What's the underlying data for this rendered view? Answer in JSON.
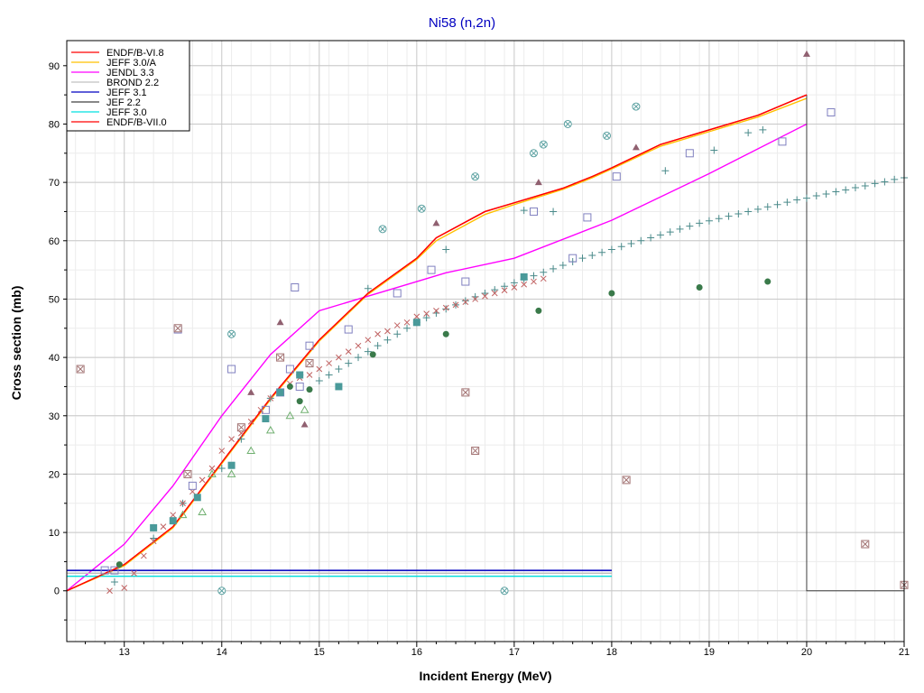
{
  "chart_data": {
    "type": "line",
    "title": "Ni58 (n,2n)",
    "xlabel": "Incident Energy (MeV)",
    "ylabel": "Cross section (mb)",
    "xlim": [
      12.41,
      21
    ],
    "ylim": [
      -8.7,
      94.3
    ],
    "xticks": [
      13,
      14,
      15,
      16,
      17,
      18,
      19,
      20,
      21
    ],
    "yticks": [
      0,
      10,
      20,
      30,
      40,
      50,
      60,
      70,
      80,
      90
    ],
    "grid": true,
    "legend_position": "top-left",
    "series": [
      {
        "name": "ENDF/B-VI.8",
        "color": "#ff0000",
        "x": [
          12.41,
          13,
          13.5,
          14,
          14.5,
          15,
          15.5,
          16,
          16.2,
          16.7,
          17,
          17.5,
          17.8,
          18,
          18.5,
          19,
          19.5,
          20
        ],
        "y": [
          0,
          4.5,
          11,
          22,
          33,
          43,
          51,
          57,
          60.5,
          65,
          66.5,
          69,
          71,
          72.5,
          76.5,
          79,
          81.5,
          85
        ]
      },
      {
        "name": "JEFF 3.0/A",
        "color": "#ffc000",
        "x": [
          12.41,
          13,
          13.5,
          14,
          14.5,
          15,
          15.5,
          16,
          16.2,
          16.7,
          17,
          17.5,
          17.8,
          18,
          18.5,
          19,
          19.5,
          20
        ],
        "y": [
          0,
          4.3,
          10.8,
          21.8,
          32.8,
          42.8,
          50.8,
          56.8,
          60,
          64.5,
          66.2,
          68.8,
          70.8,
          72.3,
          76.2,
          78.7,
          81.2,
          84.4
        ]
      },
      {
        "name": "JENDL 3.3",
        "color": "#ff00ff",
        "x": [
          12.41,
          13,
          13.5,
          14,
          14.5,
          15,
          16,
          16.3,
          17,
          18,
          19,
          20
        ],
        "y": [
          0,
          8,
          18,
          30,
          40.5,
          48,
          53,
          54.5,
          57,
          63.5,
          71.5,
          80
        ]
      },
      {
        "name": "BROND 2.2",
        "color": "#c0c0c0",
        "x": [
          12.41,
          18
        ],
        "y": [
          3,
          3
        ]
      },
      {
        "name": "JEFF 3.1",
        "color": "#0000c0",
        "x": [
          12.41,
          18
        ],
        "y": [
          3.5,
          3.5
        ]
      },
      {
        "name": "JEF 2.2",
        "color": "#404040",
        "x": [
          20,
          20,
          21
        ],
        "y": [
          85,
          0,
          0
        ]
      },
      {
        "name": "JEFF 3.0",
        "color": "#00e0e0",
        "x": [
          12.41,
          18
        ],
        "y": [
          2.5,
          2.5
        ]
      },
      {
        "name": "ENDF/B-VII.0",
        "color": "#ff0000",
        "x": [
          12.41,
          13,
          13.5,
          14,
          14.5,
          15,
          15.5,
          16,
          16.2,
          16.7,
          17,
          17.5,
          17.8,
          18,
          18.5,
          19,
          19.5,
          20
        ],
        "y": [
          0,
          4.5,
          11,
          22,
          33,
          43,
          51,
          57,
          60.5,
          65,
          66.5,
          69,
          71,
          72.5,
          76.5,
          79,
          81.5,
          85
        ]
      }
    ],
    "extra_lines": [
      {
        "color": "#5a9a5a",
        "x": [
          12.41,
          18
        ],
        "y": [
          3,
          3
        ]
      },
      {
        "color": "#7070b0",
        "x": [
          12.41,
          18
        ],
        "y": [
          3.5,
          3.5
        ]
      },
      {
        "color": "#5a9a5a",
        "x": [
          12.41,
          18
        ],
        "y": [
          2.5,
          2.5
        ]
      }
    ],
    "scatter": [
      {
        "marker": "plus",
        "color": "#4a8a8a",
        "x": [
          12.9,
          13.3,
          13.6,
          14.0,
          14.2,
          14.5,
          14.8,
          15.0,
          15.1,
          15.2,
          15.3,
          15.4,
          15.5,
          15.6,
          15.7,
          15.8,
          15.9,
          16.0,
          16.1,
          16.2,
          16.3,
          16.4,
          16.5,
          16.6,
          16.7,
          16.8,
          16.9,
          17.0,
          17.1,
          17.2,
          17.3,
          17.4,
          17.5,
          17.6,
          17.7,
          17.8,
          17.9,
          18.0,
          18.1,
          18.2,
          18.3,
          18.4,
          18.5,
          18.6,
          18.7,
          18.8,
          18.9,
          19.0,
          19.1,
          19.2,
          19.3,
          19.4,
          19.5,
          19.6,
          19.7,
          19.8,
          19.9,
          20.0,
          20.1,
          20.2,
          20.3,
          20.4,
          20.5,
          20.6,
          20.7,
          20.8,
          20.9,
          21.0,
          15.5,
          16.3,
          17.1,
          17.4,
          18.55,
          19.05,
          19.4,
          19.55
        ],
        "y": [
          1.5,
          9,
          15,
          21,
          26,
          33,
          37,
          36,
          37,
          38,
          39,
          40,
          41,
          42,
          43,
          44,
          45,
          46,
          46.8,
          47.6,
          48.3,
          49,
          49.7,
          50.4,
          51,
          51.6,
          52.2,
          52.8,
          53.4,
          54,
          54.6,
          55.2,
          55.8,
          56.4,
          57,
          57.5,
          58,
          58.5,
          59,
          59.5,
          60,
          60.5,
          61,
          61.5,
          62,
          62.5,
          63,
          63.4,
          63.8,
          64.2,
          64.6,
          65,
          65.4,
          65.8,
          66.2,
          66.6,
          67,
          67.3,
          67.7,
          68,
          68.4,
          68.7,
          69.1,
          69.4,
          69.8,
          70.1,
          70.5,
          70.8,
          51.8,
          58.5,
          65.2,
          65,
          72,
          75.5,
          78.5,
          79
        ]
      },
      {
        "marker": "x",
        "color": "#c06060",
        "x": [
          12.85,
          13.0,
          13.1,
          13.2,
          13.3,
          13.4,
          13.5,
          13.6,
          13.7,
          13.8,
          13.9,
          14.0,
          14.1,
          14.2,
          14.3,
          14.4,
          14.5,
          14.6,
          14.7,
          14.8,
          14.9,
          15.0,
          15.1,
          15.2,
          15.3,
          15.4,
          15.5,
          15.6,
          15.7,
          15.8,
          15.9,
          16.0,
          16.1,
          16.2,
          16.3,
          16.4,
          16.5,
          16.6,
          16.7,
          16.8,
          16.9,
          17.0,
          17.1,
          17.2,
          17.3
        ],
        "y": [
          0,
          0.5,
          3,
          6,
          8.5,
          11,
          13,
          15,
          17,
          19,
          21,
          24,
          26,
          27,
          29,
          31,
          33,
          34,
          35.5,
          36.5,
          37,
          38,
          39,
          40,
          41,
          42,
          43,
          44,
          44.5,
          45.5,
          46,
          47,
          47.5,
          48,
          48.5,
          49,
          49.5,
          50,
          50.5,
          51,
          51.5,
          52,
          52.5,
          53,
          53.5
        ]
      },
      {
        "marker": "square",
        "color": "#8080c0",
        "x": [
          12.8,
          12.9,
          13.55,
          13.7,
          14.1,
          14.45,
          14.6,
          14.7,
          14.8,
          14.9,
          15.3,
          15.8,
          16.15,
          16.5,
          17.2,
          17.6,
          17.75,
          18.05,
          18.8,
          19.75,
          20.25,
          14.75
        ],
        "y": [
          3.5,
          3.5,
          44.8,
          18,
          38,
          31,
          34,
          38,
          35,
          42,
          44.8,
          51,
          55,
          53,
          65,
          57,
          64,
          71,
          75,
          77,
          82,
          52
        ]
      },
      {
        "marker": "square-x",
        "color": "#a07070",
        "x": [
          12.55,
          13.55,
          14.6,
          16.5,
          16.6,
          18.15,
          20.6,
          21.0,
          13.65,
          14.2,
          14.9
        ],
        "y": [
          38,
          45,
          40,
          34,
          24,
          19,
          8,
          1,
          20,
          28,
          39
        ]
      },
      {
        "marker": "circle-x",
        "color": "#5aa0a0",
        "x": [
          14.0,
          16.9,
          15.65,
          16.05,
          16.6,
          17.3,
          17.55,
          17.95,
          18.25,
          17.2,
          14.1
        ],
        "y": [
          0,
          0,
          62,
          65.5,
          71,
          76.5,
          80,
          78,
          83,
          75,
          44
        ]
      },
      {
        "marker": "filled-square",
        "color": "#4a9a9a",
        "x": [
          13.3,
          13.5,
          13.75,
          14.1,
          14.45,
          14.8,
          15.2,
          16.0,
          17.1,
          14.6
        ],
        "y": [
          10.8,
          12,
          16,
          21.5,
          29.5,
          37,
          35,
          46,
          53.8,
          34
        ]
      },
      {
        "marker": "filled-circle",
        "color": "#3a7a4a",
        "x": [
          12.95,
          14.9,
          15.55,
          16.3,
          17.25,
          18.0,
          18.9,
          19.6,
          14.7,
          14.8
        ],
        "y": [
          4.5,
          34.5,
          40.5,
          44,
          48,
          51,
          52,
          53,
          35,
          32.5
        ]
      },
      {
        "marker": "triangle",
        "color": "#906070",
        "x": [
          14.6,
          14.85,
          16.2,
          17.25,
          18.25,
          20.0,
          14.3
        ],
        "y": [
          46,
          28.5,
          63,
          70,
          76,
          92,
          34
        ]
      },
      {
        "marker": "open-triangle",
        "color": "#70b070",
        "x": [
          13.6,
          13.8,
          14.1,
          14.3,
          14.5,
          14.7,
          14.85,
          13.9
        ],
        "y": [
          13,
          13.5,
          20,
          24,
          27.5,
          30,
          31,
          20
        ]
      }
    ]
  }
}
